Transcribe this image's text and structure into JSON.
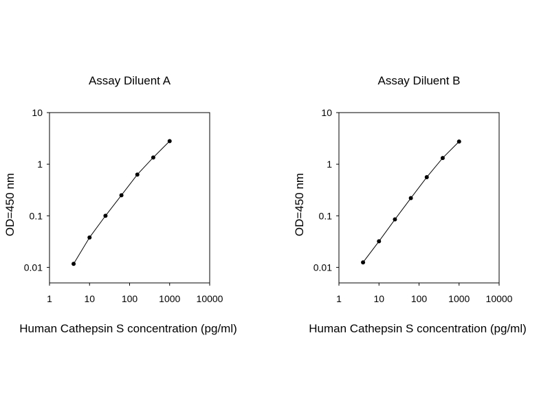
{
  "chart_data": [
    {
      "type": "line",
      "title": "Assay Diluent A",
      "x_label": "Human Cathepsin S concentration (pg/ml)",
      "y_label": "OD=450 nm",
      "x": [
        4,
        10,
        25,
        62.5,
        156,
        390,
        1000
      ],
      "series": [
        {
          "color": "#000000",
          "values": [
            0.0117,
            0.038,
            0.1,
            0.25,
            0.63,
            1.35,
            2.8
          ]
        }
      ],
      "xlim": [
        1,
        10000
      ],
      "xticks": [
        1,
        10,
        100,
        1000,
        10000
      ],
      "ylim": [
        0.005,
        10
      ],
      "yticks": [
        0.01,
        0.1,
        1,
        10
      ],
      "xscale": "log",
      "yscale": "log",
      "grid": false
    },
    {
      "type": "line",
      "title": "Assay Diluent B",
      "x_label": "Human Cathepsin S concentration (pg/ml)",
      "y_label": "OD=450 nm",
      "x": [
        4,
        10,
        25,
        62.5,
        156,
        390,
        1000
      ],
      "series": [
        {
          "color": "#000000",
          "values": [
            0.0125,
            0.032,
            0.085,
            0.22,
            0.56,
            1.32,
            2.75
          ]
        }
      ],
      "xlim": [
        1,
        10000
      ],
      "xticks": [
        1,
        10,
        100,
        1000,
        10000
      ],
      "ylim": [
        0.005,
        10
      ],
      "yticks": [
        0.01,
        0.1,
        1,
        10
      ],
      "xscale": "log",
      "yscale": "log",
      "grid": false
    }
  ]
}
